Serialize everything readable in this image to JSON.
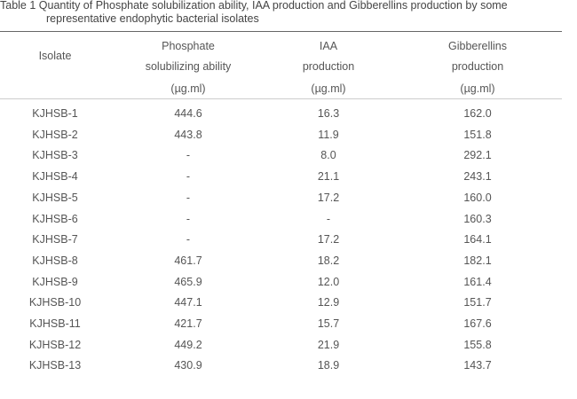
{
  "caption": {
    "line1": "Table 1  Quantity of Phosphate solubilization ability, IAA production and Gibberellins production by some",
    "line2": "representative endophytic bacterial isolates"
  },
  "headers": {
    "isolate": "Isolate",
    "phosphate": [
      "Phosphate",
      "solubilizing ability",
      "(µg.ml)"
    ],
    "iaa": [
      "IAA",
      "production",
      "(µg.ml)"
    ],
    "gibberellins": [
      "Gibberellins",
      "production",
      "(µg.ml)"
    ]
  },
  "rows": [
    [
      "KJHSB-1",
      "444.6",
      "16.3",
      "162.0"
    ],
    [
      "KJHSB-2",
      "443.8",
      "11.9",
      "151.8"
    ],
    [
      "KJHSB-3",
      "-",
      "8.0",
      "292.1"
    ],
    [
      "KJHSB-4",
      "-",
      "21.1",
      "243.1"
    ],
    [
      "KJHSB-5",
      "-",
      "17.2",
      "160.0"
    ],
    [
      "KJHSB-6",
      "-",
      "-",
      "160.3"
    ],
    [
      "KJHSB-7",
      "-",
      "17.2",
      "164.1"
    ],
    [
      "KJHSB-8",
      "461.7",
      "18.2",
      "182.1"
    ],
    [
      "KJHSB-9",
      "465.9",
      "12.0",
      "161.4"
    ],
    [
      "KJHSB-10",
      "447.1",
      "12.9",
      "151.7"
    ],
    [
      "KJHSB-11",
      "421.7",
      "15.7",
      "167.6"
    ],
    [
      "KJHSB-12",
      "449.2",
      "21.9",
      "155.8"
    ],
    [
      "KJHSB-13",
      "430.9",
      "18.9",
      "143.7"
    ]
  ]
}
